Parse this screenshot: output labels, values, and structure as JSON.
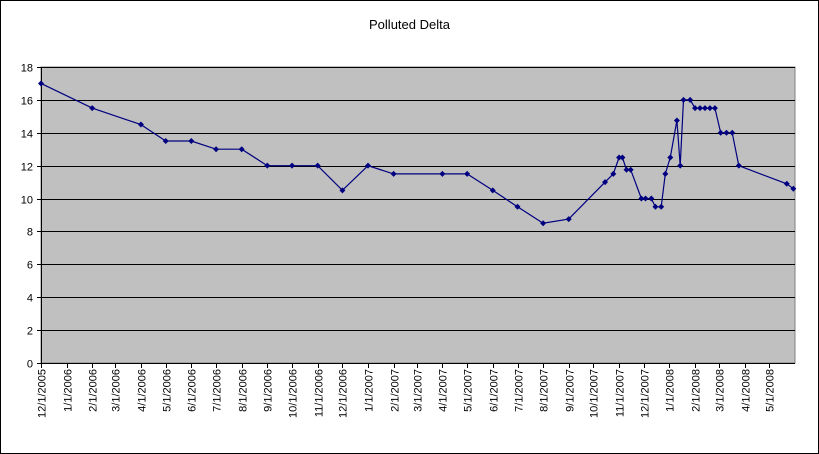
{
  "chart_data": {
    "type": "line",
    "title": "Polluted Delta",
    "xlabel": "",
    "ylabel": "",
    "ylim": [
      0,
      18
    ],
    "y_ticks": [
      0,
      2,
      4,
      6,
      8,
      10,
      12,
      14,
      16,
      18
    ],
    "xlim": [
      "2005-12-01",
      "2008-06-01"
    ],
    "x_tick_labels": [
      "12/1/2005",
      "1/1/2006",
      "2/1/2006",
      "3/1/2006",
      "4/1/2006",
      "5/1/2006",
      "6/1/2006",
      "7/1/2006",
      "8/1/2006",
      "9/1/2006",
      "10/1/2006",
      "11/1/2006",
      "12/1/2006",
      "1/1/2007",
      "2/1/2007",
      "3/1/2007",
      "4/1/2007",
      "5/1/2007",
      "6/1/2007",
      "7/1/2007",
      "8/1/2007",
      "9/1/2007",
      "10/1/2007",
      "11/1/2007",
      "12/1/2007",
      "1/1/2008",
      "2/1/2008",
      "3/1/2008",
      "4/1/2008",
      "5/1/2008"
    ],
    "grid": true,
    "legend": "none",
    "series": [
      {
        "color": "#000080",
        "points": [
          [
            "2005-12-01",
            17.0
          ],
          [
            "2006-02-01",
            15.5
          ],
          [
            "2006-04-01",
            14.5
          ],
          [
            "2006-05-01",
            13.5
          ],
          [
            "2006-06-01",
            13.5
          ],
          [
            "2006-07-01",
            13.0
          ],
          [
            "2006-08-01",
            13.0
          ],
          [
            "2006-09-01",
            12.0
          ],
          [
            "2006-10-01",
            12.0
          ],
          [
            "2006-11-01",
            12.0
          ],
          [
            "2006-12-01",
            10.5
          ],
          [
            "2007-01-01",
            12.0
          ],
          [
            "2007-02-01",
            11.5
          ],
          [
            "2007-04-01",
            11.5
          ],
          [
            "2007-05-01",
            11.5
          ],
          [
            "2007-06-01",
            10.5
          ],
          [
            "2007-07-01",
            9.5
          ],
          [
            "2007-08-01",
            8.5
          ],
          [
            "2007-09-01",
            8.75
          ],
          [
            "2007-10-15",
            11.0
          ],
          [
            "2007-10-25",
            11.5
          ],
          [
            "2007-11-01",
            12.5
          ],
          [
            "2007-11-05",
            12.5
          ],
          [
            "2007-11-10",
            11.75
          ],
          [
            "2007-11-15",
            11.75
          ],
          [
            "2007-11-28",
            10.0
          ],
          [
            "2007-12-03",
            10.0
          ],
          [
            "2007-12-10",
            10.0
          ],
          [
            "2007-12-15",
            9.5
          ],
          [
            "2007-12-22",
            9.5
          ],
          [
            "2007-12-27",
            11.5
          ],
          [
            "2008-01-02",
            12.5
          ],
          [
            "2008-01-10",
            14.75
          ],
          [
            "2008-01-14",
            12.0
          ],
          [
            "2008-01-18",
            16.0
          ],
          [
            "2008-01-26",
            16.0
          ],
          [
            "2008-02-01",
            15.5
          ],
          [
            "2008-02-07",
            15.5
          ],
          [
            "2008-02-13",
            15.5
          ],
          [
            "2008-02-19",
            15.5
          ],
          [
            "2008-02-25",
            15.5
          ],
          [
            "2008-03-03",
            14.0
          ],
          [
            "2008-03-10",
            14.0
          ],
          [
            "2008-03-17",
            14.0
          ],
          [
            "2008-03-25",
            12.0
          ],
          [
            "2008-05-22",
            10.9
          ],
          [
            "2008-05-30",
            10.6
          ]
        ]
      }
    ],
    "colors": {
      "plot_background": "#C0C0C0",
      "gridline": "#000000",
      "line": "#000080"
    }
  }
}
